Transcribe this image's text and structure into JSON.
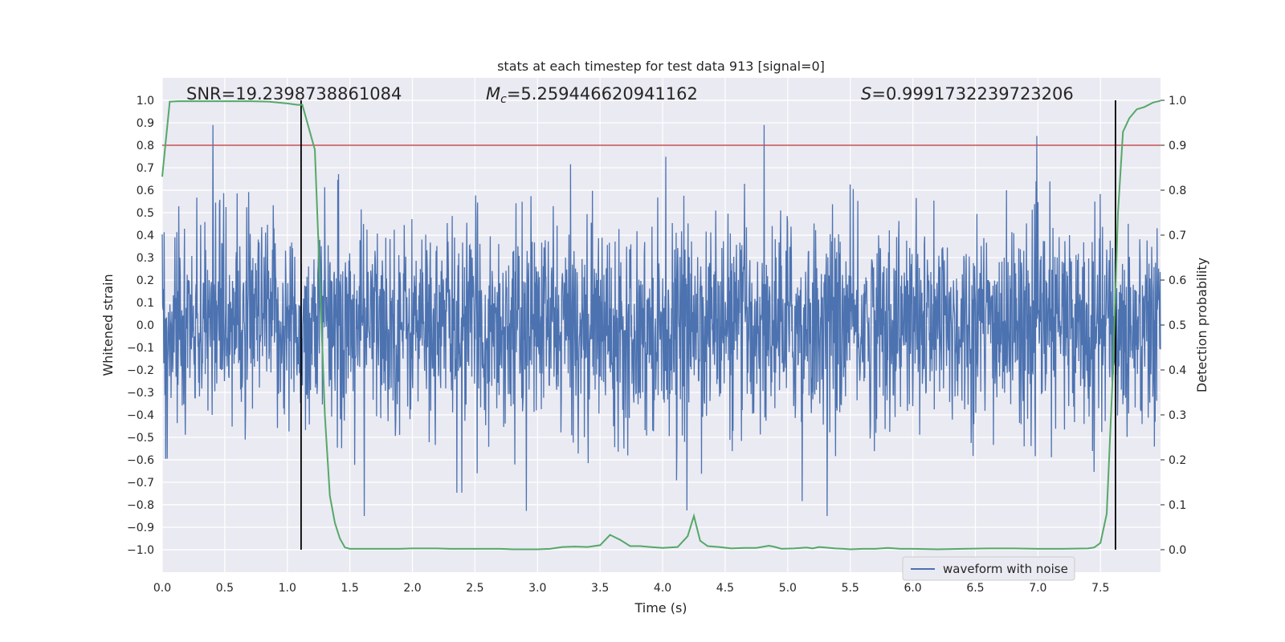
{
  "chart_data": {
    "type": "line",
    "title": "stats at each timestep for test data 913 [signal=0]",
    "xlabel": "Time (s)",
    "ylabel_left": "Whitened strain",
    "ylabel_right": "Detection probability",
    "xlim": [
      0.0,
      7.98
    ],
    "ylim_left": [
      -1.1,
      1.1
    ],
    "ylim_right": [
      -0.05,
      1.05
    ],
    "x_ticks": [
      "0.0",
      "0.5",
      "1.0",
      "1.5",
      "2.0",
      "2.5",
      "3.0",
      "3.5",
      "4.0",
      "4.5",
      "5.0",
      "5.5",
      "6.0",
      "6.5",
      "7.0",
      "7.5"
    ],
    "y_ticks_left": [
      "1.0",
      "0.9",
      "0.8",
      "0.7",
      "0.6",
      "0.5",
      "0.4",
      "0.3",
      "0.2",
      "0.1",
      "0.0",
      "-0.1",
      "-0.2",
      "-0.3",
      "-0.4",
      "-0.5",
      "-0.6",
      "-0.7",
      "-0.8",
      "-0.9",
      "-1.0"
    ],
    "y_ticks_right": [
      "1.0",
      "0.9",
      "0.8",
      "0.7",
      "0.6",
      "0.5",
      "0.4",
      "0.3",
      "0.2",
      "0.1",
      "0.0"
    ],
    "grid": true,
    "annotations": {
      "snr": "SNR=19.2398738861084",
      "mc_symbol": "M",
      "mc_subscript": "c",
      "mc_value": "=5.259446620941162",
      "s_symbol": "S",
      "s_value": "=0.9991732239723206"
    },
    "threshold_probability": 0.9,
    "vertical_lines_s": [
      1.11,
      7.62
    ],
    "legend": {
      "label": "waveform with noise",
      "position": "lower-right"
    },
    "series": [
      {
        "name": "waveform with noise",
        "axis": "left",
        "description": "whitened strain noise, roughly within [-0.85, 0.89]",
        "approx_range": [
          -0.85,
          0.89
        ]
      },
      {
        "name": "detection probability",
        "axis": "right",
        "x": [
          0.0,
          0.06,
          0.13,
          0.25,
          0.4,
          0.55,
          0.7,
          0.85,
          1.0,
          1.08,
          1.12,
          1.18,
          1.22,
          1.26,
          1.3,
          1.34,
          1.38,
          1.42,
          1.46,
          1.5,
          1.6,
          1.7,
          1.8,
          1.9,
          2.0,
          2.1,
          2.2,
          2.3,
          2.4,
          2.5,
          2.6,
          2.7,
          2.8,
          2.9,
          3.0,
          3.1,
          3.2,
          3.3,
          3.4,
          3.5,
          3.58,
          3.66,
          3.74,
          3.82,
          3.9,
          4.0,
          4.12,
          4.2,
          4.25,
          4.3,
          4.36,
          4.45,
          4.55,
          4.65,
          4.75,
          4.85,
          4.9,
          4.95,
          5.05,
          5.15,
          5.2,
          5.25,
          5.3,
          5.38,
          5.45,
          5.5,
          5.6,
          5.7,
          5.8,
          5.9,
          6.0,
          6.2,
          6.4,
          6.6,
          6.8,
          7.0,
          7.2,
          7.4,
          7.45,
          7.5,
          7.55,
          7.6,
          7.64,
          7.68,
          7.73,
          7.79,
          7.85,
          7.92,
          7.98
        ],
        "y": [
          0.83,
          0.997,
          0.998,
          0.998,
          0.998,
          0.998,
          0.998,
          0.997,
          0.993,
          0.99,
          0.99,
          0.93,
          0.89,
          0.6,
          0.3,
          0.12,
          0.06,
          0.025,
          0.005,
          0.002,
          0.002,
          0.002,
          0.002,
          0.002,
          0.003,
          0.003,
          0.003,
          0.002,
          0.002,
          0.002,
          0.002,
          0.002,
          0.001,
          0.001,
          0.001,
          0.002,
          0.006,
          0.007,
          0.006,
          0.01,
          0.033,
          0.022,
          0.008,
          0.008,
          0.006,
          0.004,
          0.006,
          0.03,
          0.075,
          0.02,
          0.008,
          0.006,
          0.003,
          0.004,
          0.004,
          0.009,
          0.006,
          0.002,
          0.003,
          0.005,
          0.003,
          0.006,
          0.005,
          0.003,
          0.002,
          0.001,
          0.002,
          0.002,
          0.004,
          0.002,
          0.002,
          0.001,
          0.002,
          0.003,
          0.003,
          0.002,
          0.002,
          0.003,
          0.005,
          0.015,
          0.08,
          0.4,
          0.75,
          0.93,
          0.96,
          0.98,
          0.985,
          0.995,
          0.999
        ]
      }
    ]
  }
}
